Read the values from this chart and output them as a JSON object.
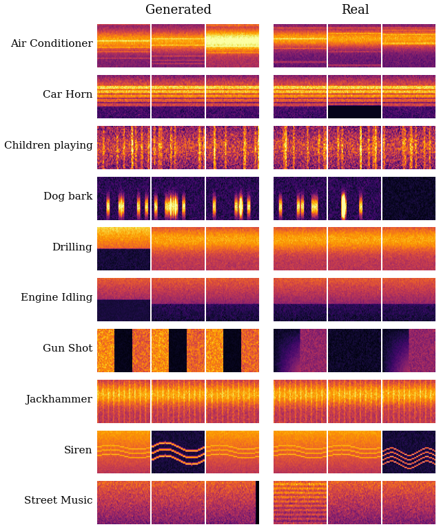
{
  "title_generated": "Generated",
  "title_real": "Real",
  "categories": [
    "Air Conditioner",
    "Car Horn",
    "Children playing",
    "Dog bark",
    "Drilling",
    "Engine Idling",
    "Gun Shot",
    "Jackhammer",
    "Siren",
    "Street Music"
  ],
  "figsize": [
    6.4,
    7.66
  ],
  "dpi": 100,
  "n_cols_per_group": 3,
  "background_color": "#ffffff",
  "title_fontsize": 13,
  "label_fontsize": 11
}
